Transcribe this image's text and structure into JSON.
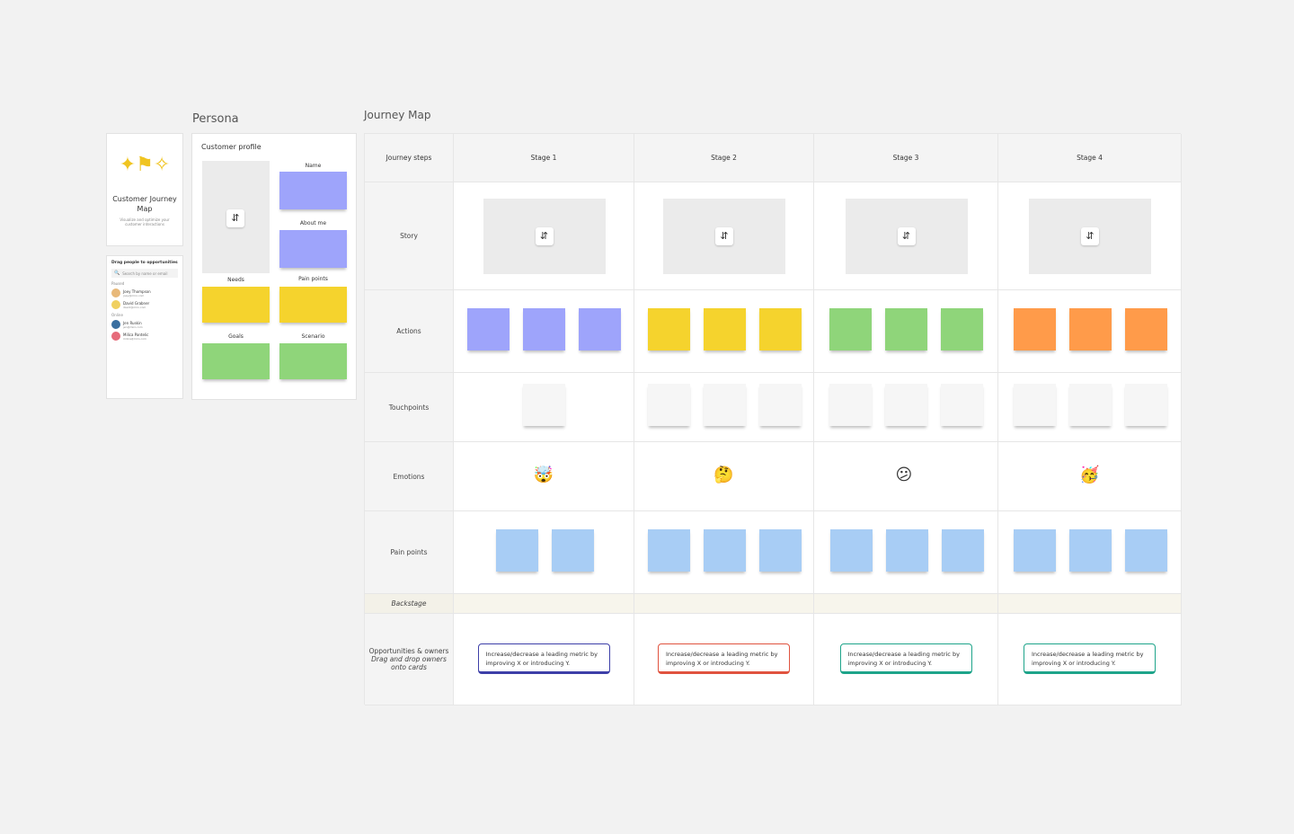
{
  "persona": {
    "title": "Persona",
    "template_card": {
      "title": "Customer Journey Map",
      "subtitle": "Visualize and optimize your customer interactions"
    },
    "people": {
      "title": "Drag people to opportunities",
      "search_placeholder": "Search by name or email",
      "groups": [
        {
          "label": "Paused",
          "people": [
            {
              "name": "Joey Thompson",
              "email": "joey@miro.com",
              "color": "#e8b97a"
            },
            {
              "name": "David Grabner",
              "email": "david@miro.com",
              "color": "#f0d060"
            }
          ]
        },
        {
          "label": "Online",
          "people": [
            {
              "name": "Jen Ruskin",
              "email": "jen@miro.com",
              "color": "#3a6fa0"
            },
            {
              "name": "Milica Pantelic",
              "email": "milica@miro.com",
              "color": "#e66b7a"
            }
          ]
        }
      ]
    },
    "profile": {
      "title": "Customer profile",
      "labels": {
        "name": "Name",
        "about": "About me",
        "needs": "Needs",
        "pain": "Pain points",
        "goals": "Goals",
        "scenario": "Scenario"
      }
    }
  },
  "journey": {
    "title": "Journey Map",
    "header_label": "Journey steps",
    "stages": [
      "Stage 1",
      "Stage 2",
      "Stage 3",
      "Stage 4"
    ],
    "rows": {
      "story": "Story",
      "actions": "Actions",
      "touchpoints": "Touchpoints",
      "emotions": "Emotions",
      "pain": "Pain points",
      "backstage": "Backstage",
      "opp_title": "Opportunities & owners",
      "opp_sub": "Drag and drop owners onto cards"
    },
    "action_colors": [
      "#9ea4fb",
      "#f5d32d",
      "#8fd57a",
      "#ff9b4a"
    ],
    "pain_color": "#a8cdf5",
    "touchpoint_counts": [
      1,
      3,
      3,
      3
    ],
    "pain_counts": [
      2,
      3,
      3,
      3
    ],
    "emotions": [
      "🤯",
      "🤔",
      "😕",
      "🥳"
    ],
    "opportunities": [
      {
        "text": "Increase/decrease a leading metric by improving X or introducing Y.",
        "color": "#3d3fa8"
      },
      {
        "text": "Increase/decrease a leading metric by improving X or introducing Y.",
        "color": "#e0533f"
      },
      {
        "text": "Increase/decrease a leading metric by improving X or introducing Y.",
        "color": "#1ea48a"
      },
      {
        "text": "Increase/decrease a leading metric by improving X or introducing Y.",
        "color": "#1ea48a"
      }
    ]
  }
}
